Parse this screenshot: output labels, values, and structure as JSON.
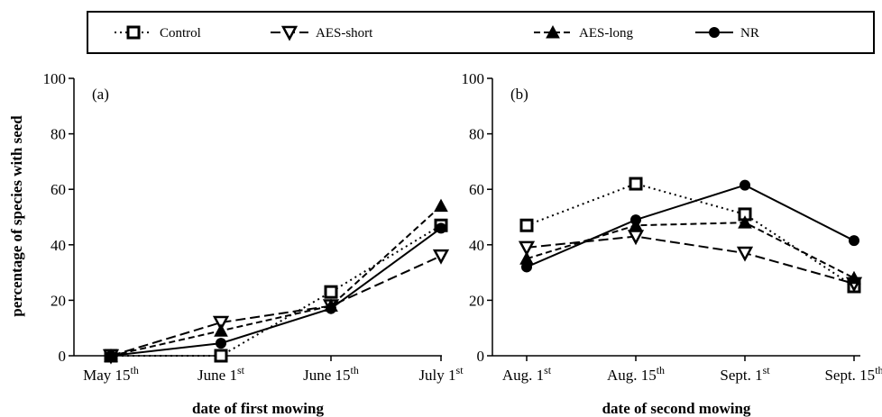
{
  "legend": {
    "items": [
      {
        "label": "Control",
        "marker": "open-square",
        "dash": "dotted",
        "color": "#000000"
      },
      {
        "label": "AES-short",
        "marker": "open-triangle-down",
        "dash": "long-dashed",
        "color": "#000000"
      },
      {
        "label": "AES-long",
        "marker": "filled-triangle-up",
        "dash": "dashed",
        "color": "#000000"
      },
      {
        "label": "NR",
        "marker": "filled-circle",
        "dash": "solid",
        "color": "#000000"
      }
    ]
  },
  "ylabel": "percentage of species with seed",
  "chart_data": [
    {
      "type": "line",
      "panel_label": "(a)",
      "categories": [
        {
          "base": "May 15",
          "sup": "th"
        },
        {
          "base": "June 1",
          "sup": "st"
        },
        {
          "base": "June 15",
          "sup": "th"
        },
        {
          "base": "July 1",
          "sup": "st"
        }
      ],
      "xlabel": "date of first mowing",
      "ylabel": "percentage of species with seed",
      "ylim": [
        0,
        100
      ],
      "yticks": [
        0,
        20,
        40,
        60,
        80,
        100
      ],
      "grid": false,
      "series": [
        {
          "name": "Control",
          "values": [
            0,
            0,
            23,
            47
          ]
        },
        {
          "name": "AES-short",
          "values": [
            0,
            12,
            18,
            36
          ]
        },
        {
          "name": "AES-long",
          "values": [
            0,
            9,
            18,
            54
          ]
        },
        {
          "name": "NR",
          "values": [
            0,
            4.5,
            17,
            46
          ]
        }
      ]
    },
    {
      "type": "line",
      "panel_label": "(b)",
      "categories": [
        {
          "base": "Aug. 1",
          "sup": "st"
        },
        {
          "base": "Aug. 15",
          "sup": "th"
        },
        {
          "base": "Sept. 1",
          "sup": "st"
        },
        {
          "base": "Sept. 15",
          "sup": "th"
        }
      ],
      "xlabel": "date of second mowing",
      "ylabel": "",
      "ylim": [
        0,
        100
      ],
      "yticks": [
        0,
        20,
        40,
        60,
        80,
        100
      ],
      "grid": false,
      "series": [
        {
          "name": "Control",
          "values": [
            47,
            62,
            51,
            25
          ]
        },
        {
          "name": "AES-short",
          "values": [
            39,
            43,
            37,
            26
          ]
        },
        {
          "name": "AES-long",
          "values": [
            35,
            47,
            48,
            28
          ]
        },
        {
          "name": "NR",
          "values": [
            32,
            49,
            61.5,
            41.5
          ]
        }
      ]
    }
  ]
}
